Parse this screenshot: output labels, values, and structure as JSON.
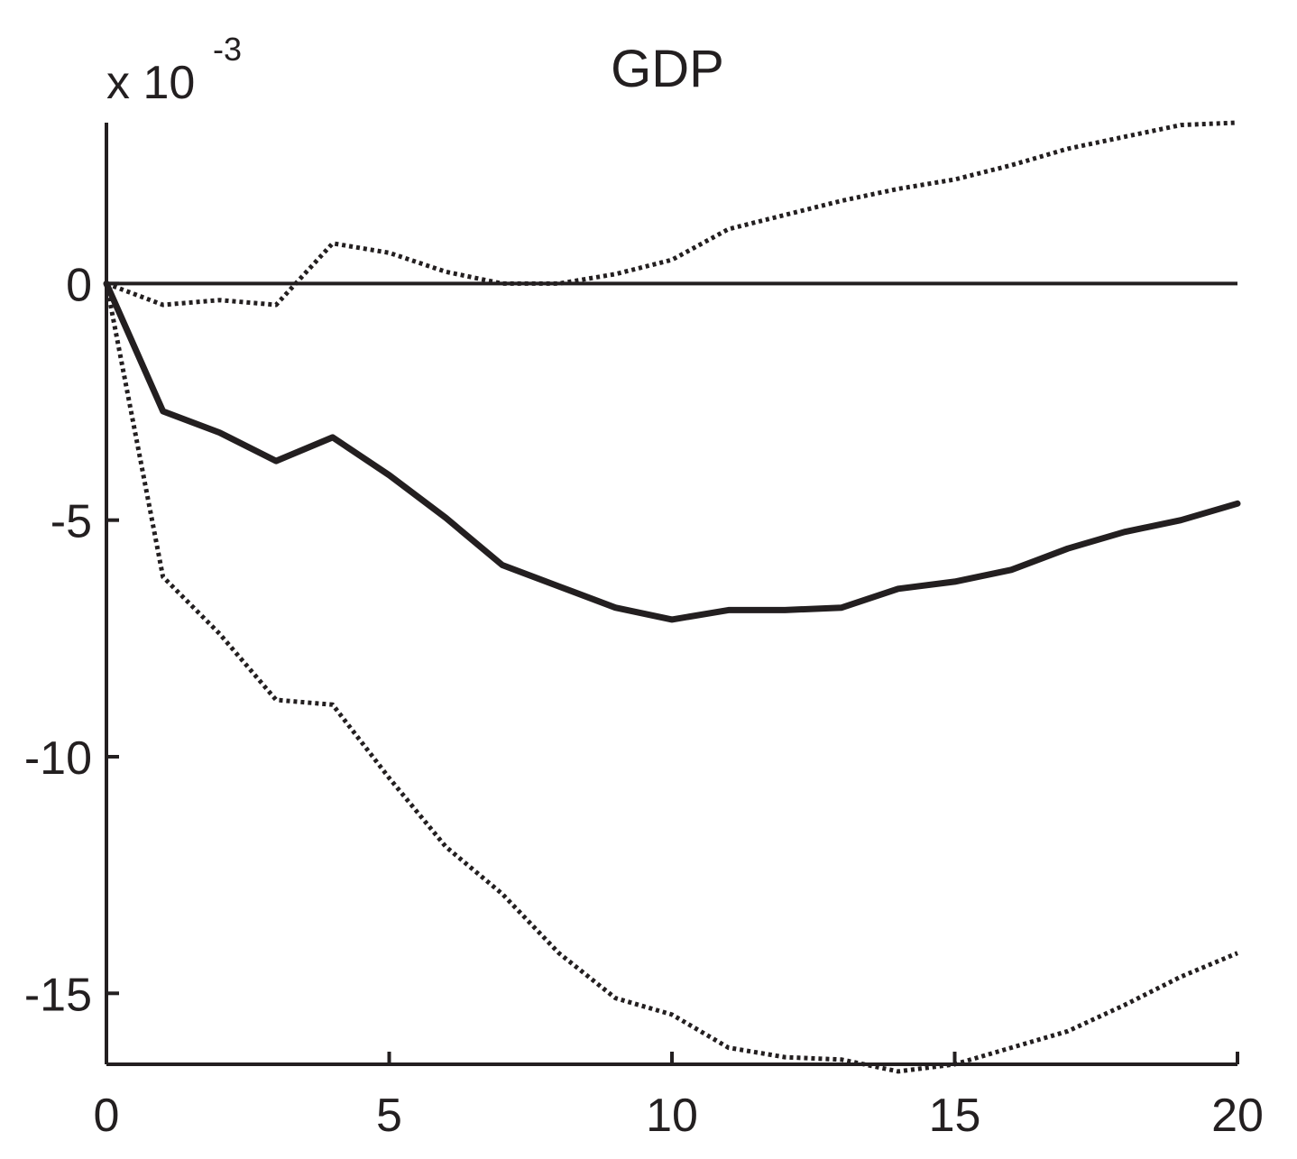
{
  "chart_data": {
    "type": "line",
    "title": "GDP",
    "xlabel": "",
    "ylabel": "",
    "multiplier": {
      "base": "x 10",
      "exponent": "-3"
    },
    "xlim": [
      0,
      20
    ],
    "ylim": [
      -16.5,
      3.4
    ],
    "xticks": [
      0,
      5,
      10,
      15,
      20
    ],
    "yticks": [
      0,
      -5,
      -10,
      -15
    ],
    "xtick_labels": [
      "0",
      "5",
      "10",
      "15",
      "20"
    ],
    "ytick_labels": [
      "0",
      "-5",
      "-10",
      "-15"
    ],
    "grid": false,
    "legend": "none",
    "x": [
      0,
      1,
      2,
      3,
      4,
      5,
      6,
      7,
      8,
      9,
      10,
      11,
      12,
      13,
      14,
      15,
      16,
      17,
      18,
      19,
      20
    ],
    "series": [
      {
        "style": "solid",
        "color": "#231f20",
        "values": [
          0,
          -2.7,
          -3.15,
          -3.75,
          -3.25,
          -4.05,
          -4.95,
          -5.95,
          -6.4,
          -6.85,
          -7.1,
          -6.9,
          -6.9,
          -6.85,
          -6.45,
          -6.3,
          -6.05,
          -5.6,
          -5.25,
          -5.0,
          -4.65
        ]
      },
      {
        "style": "dotted",
        "color": "#231f20",
        "values": [
          0,
          -0.45,
          -0.35,
          -0.45,
          0.85,
          0.65,
          0.25,
          0.0,
          0.0,
          0.2,
          0.5,
          1.15,
          1.45,
          1.75,
          2.0,
          2.2,
          2.5,
          2.85,
          3.1,
          3.35,
          3.4
        ]
      },
      {
        "style": "dotted",
        "color": "#231f20",
        "values": [
          0,
          -6.2,
          -7.4,
          -8.8,
          -8.9,
          -10.45,
          -11.9,
          -12.9,
          -14.15,
          -15.1,
          -15.45,
          -16.15,
          -16.35,
          -16.4,
          -16.65,
          -16.5,
          -16.15,
          -15.8,
          -15.25,
          -14.65,
          -14.15
        ]
      },
      {
        "style": "solid",
        "color": "#231f20",
        "values": [
          0,
          0,
          0,
          0,
          0,
          0,
          0,
          0,
          0,
          0,
          0,
          0,
          0,
          0,
          0,
          0,
          0,
          0,
          0,
          0,
          0
        ]
      }
    ]
  }
}
